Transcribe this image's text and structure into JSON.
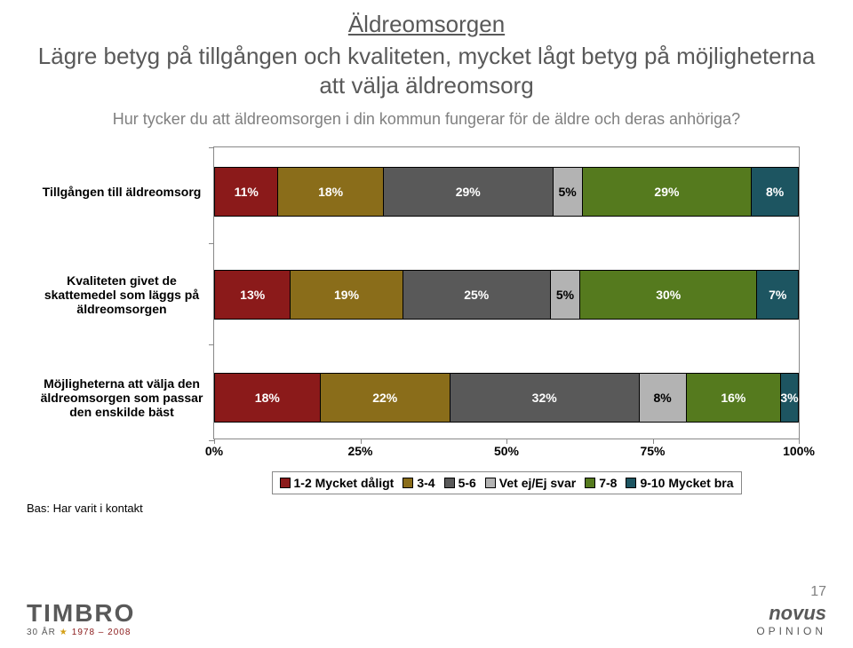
{
  "title_top": "Äldreomsorgen",
  "title_rest": "Lägre betyg på tillgången och kvaliteten, mycket lågt betyg på möjligheterna att välja äldreomsorg",
  "subtitle": "Hur tycker du att äldreomsorgen i din kommun fungerar för de äldre och deras anhöriga?",
  "footnote": "Bas: Har varit i kontakt",
  "page_number": "17",
  "chart": {
    "series": [
      {
        "label": "1-2 Mycket dåligt",
        "color": "#8b1a1a",
        "text": "#ffffff"
      },
      {
        "label": "3-4",
        "color": "#8a6d1a",
        "text": "#ffffff"
      },
      {
        "label": "5-6",
        "color": "#595959",
        "text": "#ffffff"
      },
      {
        "label": "Vet ej/Ej svar",
        "color": "#b3b3b3",
        "text": "#000000"
      },
      {
        "label": "7-8",
        "color": "#557a1e",
        "text": "#ffffff"
      },
      {
        "label": "9-10 Mycket bra",
        "color": "#1d5561",
        "text": "#ffffff"
      }
    ],
    "rows": [
      {
        "label": "Tillgången till äldreomsorg",
        "values": [
          11,
          18,
          29,
          5,
          29,
          8
        ]
      },
      {
        "label": "Kvaliteten givet de skattemedel som läggs på äldreomsorgen",
        "values": [
          13,
          19,
          25,
          5,
          30,
          7
        ]
      },
      {
        "label": "Möjligheterna att välja den äldreomsorgen som passar den enskilde bäst",
        "values": [
          18,
          22,
          32,
          8,
          16,
          3
        ]
      }
    ],
    "xticks": [
      0,
      25,
      50,
      75,
      100
    ],
    "row_positions": [
      22,
      138,
      254
    ],
    "cat_ticks": [
      0,
      108,
      222,
      330
    ]
  },
  "logos": {
    "timbro": {
      "name": "TIMBRO",
      "sub_left": "30 ÅR",
      "sub_right": "1978 – 2008"
    },
    "novus": {
      "name": "novus",
      "sub": "OPINION"
    }
  }
}
